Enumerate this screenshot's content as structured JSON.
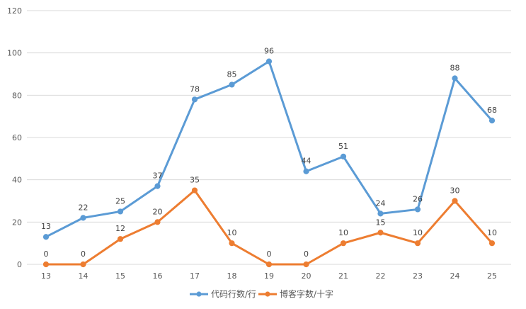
{
  "chart_data": {
    "type": "line",
    "title": "",
    "xlabel": "",
    "ylabel": "",
    "categories": [
      "13",
      "14",
      "15",
      "16",
      "17",
      "18",
      "19",
      "20",
      "21",
      "22",
      "23",
      "24",
      "25"
    ],
    "ylim": [
      0,
      120
    ],
    "yticks": [
      0,
      20,
      40,
      60,
      80,
      100,
      120
    ],
    "grid": true,
    "legend_position": "bottom",
    "series": [
      {
        "name": "代码行数/行",
        "color": "#5b9bd5",
        "values": [
          13,
          22,
          25,
          37,
          78,
          85,
          96,
          44,
          51,
          24,
          26,
          88,
          68
        ]
      },
      {
        "name": "博客字数/十字",
        "color": "#ed7d31",
        "values": [
          0,
          0,
          12,
          20,
          35,
          10,
          0,
          0,
          10,
          15,
          10,
          30,
          10
        ]
      }
    ]
  }
}
